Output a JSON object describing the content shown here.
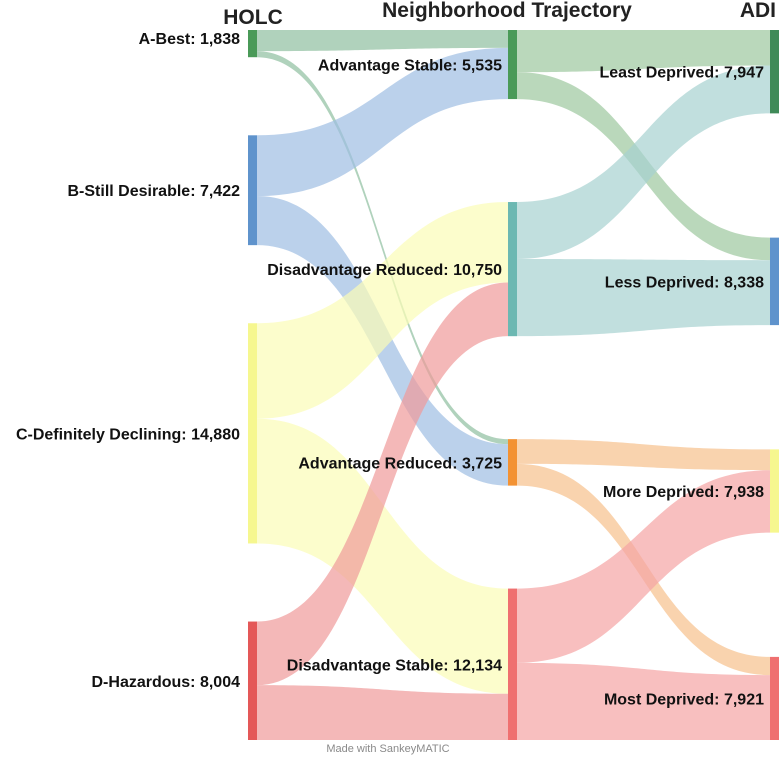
{
  "chart_data": {
    "type": "sankey",
    "column_titles": [
      "HOLC",
      "Neighborhood Trajectory",
      "ADI"
    ],
    "credit": "Made with SankeyMATIC",
    "columns": [
      [
        {
          "id": "hA",
          "name": "A-Best",
          "value": 1838,
          "label": "A-Best: 1,838",
          "color": "#4a9a58"
        },
        {
          "id": "hB",
          "name": "B-Still Desirable",
          "value": 7422,
          "label": "B-Still Desirable: 7,422",
          "color": "#5f93cc"
        },
        {
          "id": "hC",
          "name": "C-Definitely Declining",
          "value": 14880,
          "label": "C-Definitely Declining: 14,880",
          "color": "#f6f78f"
        },
        {
          "id": "hD",
          "name": "D-Hazardous",
          "value": 8004,
          "label": "D-Hazardous: 8,004",
          "color": "#e45858"
        }
      ],
      [
        {
          "id": "tAS",
          "name": "Advantage Stable",
          "value": 5535,
          "label": "Advantage Stable: 5,535",
          "color": "#4a9a58"
        },
        {
          "id": "tDR",
          "name": "Disadvantage Reduced",
          "value": 10750,
          "label": "Disadvantage Reduced: 10,750",
          "color": "#6cb8b2"
        },
        {
          "id": "tAR",
          "name": "Advantage Reduced",
          "value": 3725,
          "label": "Advantage Reduced: 3,725",
          "color": "#f39233"
        },
        {
          "id": "tDS",
          "name": "Disadvantage Stable",
          "value": 12134,
          "label": "Disadvantage Stable: 12,134",
          "color": "#ef7070"
        }
      ],
      [
        {
          "id": "aLeast",
          "name": "Least Deprived",
          "value": 7947,
          "label": "Least Deprived: 7,947",
          "color": "#3f8a58"
        },
        {
          "id": "aLess",
          "name": "Less Deprived",
          "value": 8338,
          "label": "Less Deprived: 8,338",
          "color": "#5f93cc"
        },
        {
          "id": "aMore",
          "name": "More Deprived",
          "value": 7938,
          "label": "More Deprived: 7,938",
          "color": "#f6f78f"
        },
        {
          "id": "aMost",
          "name": "Most Deprived",
          "value": 7921,
          "label": "Most Deprived: 7,921",
          "color": "#ef7070"
        }
      ]
    ],
    "flows": [
      {
        "source": "hA",
        "target": "tAS",
        "value": 1430,
        "color": "#8fbfa0"
      },
      {
        "source": "hA",
        "target": "tAR",
        "value": 408,
        "color": "#8fbfa0"
      },
      {
        "source": "hB",
        "target": "tAS",
        "value": 4105,
        "color": "#9ebde3"
      },
      {
        "source": "hB",
        "target": "tAR",
        "value": 3317,
        "color": "#9ebde3"
      },
      {
        "source": "hC",
        "target": "tDR",
        "value": 6450,
        "color": "#fbfcb6"
      },
      {
        "source": "hC",
        "target": "tDS",
        "value": 8430,
        "color": "#fbfcb6"
      },
      {
        "source": "hD",
        "target": "tDR",
        "value": 4300,
        "color": "#ef9a9a"
      },
      {
        "source": "hD",
        "target": "tDS",
        "value": 3704,
        "color": "#ef9a9a"
      },
      {
        "source": "tAS",
        "target": "aLeast",
        "value": 3380,
        "color": "#9cc89e"
      },
      {
        "source": "tAS",
        "target": "aLess",
        "value": 2155,
        "color": "#9cc89e"
      },
      {
        "source": "tDR",
        "target": "aLeast",
        "value": 4567,
        "color": "#a7d2d0"
      },
      {
        "source": "tDR",
        "target": "aLess",
        "value": 6183,
        "color": "#a7d2d0"
      },
      {
        "source": "tAR",
        "target": "aMore",
        "value": 1987,
        "color": "#f6c08c"
      },
      {
        "source": "tAR",
        "target": "aMost",
        "value": 1738,
        "color": "#f6c08c"
      },
      {
        "source": "tDS",
        "target": "aMore",
        "value": 5951,
        "color": "#f5a4a4"
      },
      {
        "source": "tDS",
        "target": "aMost",
        "value": 6183,
        "color": "#f5a4a4"
      }
    ]
  }
}
